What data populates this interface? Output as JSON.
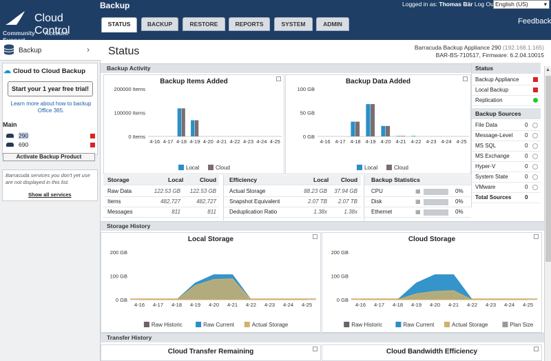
{
  "header": {
    "brand": "Cloud Control",
    "nav": [
      "Community",
      "Account",
      "Support"
    ],
    "section": "Backup",
    "user_prefix": "Logged in as:",
    "user_name": "Thomas Bär",
    "logout": "Log Out",
    "language": "English (US)",
    "feedback": "Feedback",
    "tabs": [
      "STATUS",
      "BACKUP",
      "RESTORE",
      "REPORTS",
      "SYSTEM",
      "ADMIN"
    ]
  },
  "sidebar": {
    "backup_label": "Backup",
    "c2c_title": "Cloud to Cloud Backup",
    "trial_button": "Start your 1 year free trial!",
    "learn_link": "Learn more about how to backup Office 365.",
    "main_heading": "Main",
    "devices": [
      {
        "name": "290"
      },
      {
        "name": "690"
      }
    ],
    "activate": "Activate Backup Product",
    "note": "Barracuda services you don't yet use are not displayed in this list.",
    "show_all": "Show all services"
  },
  "main": {
    "title": "Status",
    "appliance_line1": "Barracuda Backup Appliance 290",
    "appliance_ip": "(192.168.1.165)",
    "appliance_line2": "BAR-BS-710517, Firmware: 6.2.04.10015",
    "backup_activity": "Backup Activity",
    "storage_history": "Storage History",
    "transfer_history": "Transfer History"
  },
  "storage_table": {
    "headers": [
      "Storage",
      "Local",
      "Cloud"
    ],
    "rows": [
      [
        "Raw Data",
        "122.53 GB",
        "122.53 GB"
      ],
      [
        "Items",
        "482,727",
        "482,727"
      ],
      [
        "Messages",
        "811",
        "811"
      ]
    ]
  },
  "efficiency_table": {
    "headers": [
      "Efficiency",
      "Local",
      "Cloud"
    ],
    "rows": [
      [
        "Actual Storage",
        "88.23 GB",
        "37.94 GB"
      ],
      [
        "Snapshot Equivalent",
        "2.07 TB",
        "2.07 TB"
      ],
      [
        "Deduplication Ratio",
        "1.38x",
        "1.38x"
      ]
    ]
  },
  "backup_stats": {
    "heading": "Backup Statistics",
    "rows": [
      {
        "label": "CPU",
        "value": "0%"
      },
      {
        "label": "Disk",
        "value": "0%"
      },
      {
        "label": "Ethernet",
        "value": "0%"
      }
    ]
  },
  "status_panel": {
    "heading": "Status",
    "items": [
      {
        "label": "Backup Appliance",
        "state": "red"
      },
      {
        "label": "Local Backup",
        "state": "red"
      },
      {
        "label": "Replication",
        "state": "green"
      }
    ],
    "sources_heading": "Backup Sources",
    "sources": [
      {
        "label": "File Data",
        "count": "0"
      },
      {
        "label": "Message-Level",
        "count": "0"
      },
      {
        "label": "MS SQL",
        "count": "0"
      },
      {
        "label": "MS Exchange",
        "count": "0"
      },
      {
        "label": "Hyper-V",
        "count": "0"
      },
      {
        "label": "System State",
        "count": "0"
      },
      {
        "label": "VMware",
        "count": "0"
      }
    ],
    "total_label": "Total Sources",
    "total_count": "0"
  },
  "colors": {
    "local": "#2a8fc8",
    "cloud": "#7a6e6e",
    "raw_historic": "#6e6262",
    "raw_current": "#2a8fc8",
    "actual": "#d2b06a",
    "plan": "#9a9a9a",
    "red": "#dd2222",
    "green": "#22cc22"
  },
  "chart_data": [
    {
      "type": "bar",
      "title": "Backup Items Added",
      "categories": [
        "4-16",
        "4-17",
        "4-18",
        "4-19",
        "4-20",
        "4-21",
        "4-22",
        "4-23",
        "4-24",
        "4-25"
      ],
      "series": [
        {
          "name": "Local",
          "values": [
            0,
            0,
            118000,
            68000,
            0,
            0,
            0,
            0,
            0,
            0
          ]
        },
        {
          "name": "Cloud",
          "values": [
            0,
            0,
            118000,
            68000,
            0,
            0,
            0,
            0,
            0,
            0
          ]
        }
      ],
      "yticks": [
        "200000 Items",
        "100000 Items",
        "0 Items"
      ],
      "ylim": [
        0,
        200000
      ]
    },
    {
      "type": "bar",
      "title": "Backup Data Added",
      "categories": [
        "4-16",
        "4-17",
        "4-18",
        "4-19",
        "4-20",
        "4-21",
        "4-22",
        "4-23",
        "4-24",
        "4-25"
      ],
      "series": [
        {
          "name": "Local",
          "values": [
            0,
            0,
            31,
            68,
            22,
            1,
            1,
            0,
            0,
            0
          ]
        },
        {
          "name": "Cloud",
          "values": [
            0,
            0,
            31,
            68,
            22,
            1,
            0,
            0,
            0,
            0
          ]
        }
      ],
      "yticks": [
        "100 GB",
        "50 GB",
        "0 GB"
      ],
      "ylim": [
        0,
        100
      ]
    },
    {
      "type": "area",
      "title": "Local Storage",
      "categories": [
        "4-16",
        "4-17",
        "4-18",
        "4-19",
        "4-20",
        "4-21",
        "4-22",
        "4-23",
        "4-24",
        "4-25"
      ],
      "series": [
        {
          "name": "Raw Historic",
          "values": [
            0,
            0,
            0,
            0,
            0,
            0,
            0,
            0,
            0,
            0
          ]
        },
        {
          "name": "Raw Current",
          "values": [
            0,
            0,
            0,
            70,
            105,
            105,
            0,
            0,
            0,
            0
          ]
        },
        {
          "name": "Actual Storage",
          "values": [
            0,
            0,
            0,
            60,
            85,
            88,
            0,
            0,
            0,
            0
          ]
        }
      ],
      "yticks": [
        "200 GB",
        "100 GB",
        "0 GB"
      ],
      "ylim": [
        0,
        200
      ]
    },
    {
      "type": "area",
      "title": "Cloud Storage",
      "categories": [
        "4-16",
        "4-17",
        "4-18",
        "4-19",
        "4-20",
        "4-21",
        "4-22",
        "4-23",
        "4-24",
        "4-25"
      ],
      "series": [
        {
          "name": "Raw Historic",
          "values": [
            0,
            0,
            0,
            0,
            0,
            0,
            0,
            0,
            0,
            0
          ]
        },
        {
          "name": "Raw Current",
          "values": [
            0,
            0,
            0,
            70,
            105,
            105,
            0,
            0,
            0,
            0
          ]
        },
        {
          "name": "Actual Storage",
          "values": [
            0,
            0,
            0,
            25,
            35,
            38,
            0,
            0,
            0,
            0
          ]
        },
        {
          "name": "Plan Size",
          "values": [
            0,
            0,
            0,
            0,
            0,
            0,
            0,
            0,
            0,
            0
          ]
        }
      ],
      "yticks": [
        "200 GB",
        "100 GB",
        "0 GB"
      ],
      "ylim": [
        0,
        200
      ]
    },
    {
      "type": "line",
      "title": "Cloud Transfer Remaining"
    },
    {
      "type": "line",
      "title": "Cloud Bandwidth Efficiency"
    }
  ]
}
